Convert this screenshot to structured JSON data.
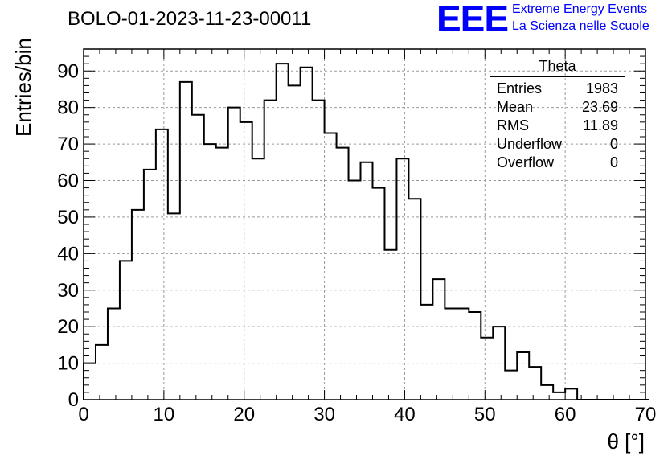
{
  "header": {
    "title": "BOLO-01-2023-11-23-00011"
  },
  "logo": {
    "mark": "EEE",
    "line1": "Extreme Energy Events",
    "line2": "La Scienza nelle Scuole",
    "color": "#0000ff"
  },
  "stats_box": {
    "title": "Theta",
    "rows": [
      {
        "label": "Entries",
        "value": "1983"
      },
      {
        "label": "Mean",
        "value": "23.69"
      },
      {
        "label": "RMS",
        "value": "11.89"
      },
      {
        "label": "Underflow",
        "value": "0"
      },
      {
        "label": "Overflow",
        "value": "0"
      }
    ]
  },
  "chart_data": {
    "type": "bar",
    "style": "step-histogram",
    "title": "BOLO-01-2023-11-23-00011",
    "xlabel": "θ [°]",
    "ylabel": "Entries/bin",
    "xlim": [
      0,
      70
    ],
    "ylim": [
      0,
      96
    ],
    "bin_width": 1.5,
    "bin_start": 0,
    "x_ticks": [
      "0",
      "10",
      "20",
      "30",
      "40",
      "50",
      "60",
      "70"
    ],
    "y_ticks": [
      "0",
      "10",
      "20",
      "30",
      "40",
      "50",
      "60",
      "70",
      "80",
      "90"
    ],
    "grid": true,
    "values": [
      10,
      15,
      25,
      38,
      52,
      63,
      74,
      51,
      87,
      78,
      70,
      69,
      80,
      76,
      66,
      82,
      92,
      86,
      91,
      82,
      73,
      69,
      60,
      65,
      58,
      41,
      66,
      55,
      26,
      33,
      25,
      25,
      24,
      17,
      20,
      8,
      13,
      9,
      4,
      2,
      3,
      0,
      0,
      0,
      0,
      0,
      0
    ]
  }
}
